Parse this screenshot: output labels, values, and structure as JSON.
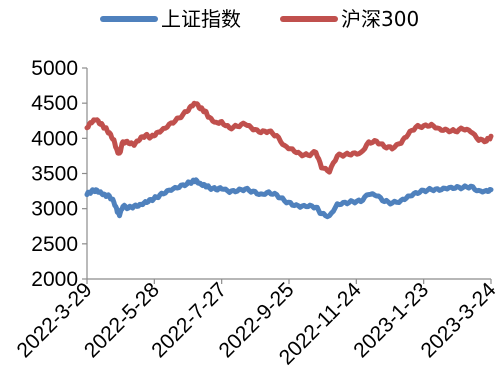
{
  "chart_data": {
    "type": "line",
    "title": "",
    "xlabel": "",
    "ylabel": "",
    "ylim": [
      2000,
      5000
    ],
    "yticks": [
      2000,
      2500,
      3000,
      3500,
      4000,
      4500,
      5000
    ],
    "xlim": [
      "2022-03-29",
      "2023-03-24"
    ],
    "xticks": [
      "2022-3-29",
      "2022-5-28",
      "2022-7-27",
      "2022-9-25",
      "2022-11-24",
      "2023-1-23",
      "2023-3-24"
    ],
    "grid": false,
    "legend_position": "top",
    "series": [
      {
        "name": "上证指数",
        "color": "#4f81bd",
        "points": [
          [
            "2022-03-29",
            3200
          ],
          [
            "2022-04-02",
            3250
          ],
          [
            "2022-04-06",
            3270
          ],
          [
            "2022-04-10",
            3240
          ],
          [
            "2022-04-14",
            3200
          ],
          [
            "2022-04-18",
            3180
          ],
          [
            "2022-04-22",
            3090
          ],
          [
            "2022-04-25",
            2950
          ],
          [
            "2022-04-27",
            2900
          ],
          [
            "2022-04-30",
            3030
          ],
          [
            "2022-05-05",
            3010
          ],
          [
            "2022-05-10",
            3040
          ],
          [
            "2022-05-15",
            3060
          ],
          [
            "2022-05-20",
            3100
          ],
          [
            "2022-05-25",
            3130
          ],
          [
            "2022-05-30",
            3160
          ],
          [
            "2022-06-05",
            3210
          ],
          [
            "2022-06-12",
            3260
          ],
          [
            "2022-06-19",
            3300
          ],
          [
            "2022-06-26",
            3350
          ],
          [
            "2022-07-01",
            3390
          ],
          [
            "2022-07-04",
            3410
          ],
          [
            "2022-07-08",
            3360
          ],
          [
            "2022-07-12",
            3340
          ],
          [
            "2022-07-16",
            3300
          ],
          [
            "2022-07-22",
            3270
          ],
          [
            "2022-07-27",
            3280
          ],
          [
            "2022-08-03",
            3230
          ],
          [
            "2022-08-10",
            3250
          ],
          [
            "2022-08-17",
            3280
          ],
          [
            "2022-08-24",
            3250
          ],
          [
            "2022-08-31",
            3210
          ],
          [
            "2022-09-07",
            3240
          ],
          [
            "2022-09-14",
            3200
          ],
          [
            "2022-09-21",
            3110
          ],
          [
            "2022-09-28",
            3050
          ],
          [
            "2022-10-05",
            3020
          ],
          [
            "2022-10-12",
            3030
          ],
          [
            "2022-10-19",
            3020
          ],
          [
            "2022-10-24",
            2930
          ],
          [
            "2022-10-31",
            2900
          ],
          [
            "2022-11-07",
            3070
          ],
          [
            "2022-11-14",
            3090
          ],
          [
            "2022-11-21",
            3100
          ],
          [
            "2022-11-28",
            3100
          ],
          [
            "2022-12-05",
            3200
          ],
          [
            "2022-12-12",
            3180
          ],
          [
            "2022-12-19",
            3100
          ],
          [
            "2022-12-26",
            3080
          ],
          [
            "2023-01-03",
            3120
          ],
          [
            "2023-01-09",
            3180
          ],
          [
            "2023-01-16",
            3230
          ],
          [
            "2023-01-23",
            3260
          ],
          [
            "2023-01-30",
            3270
          ],
          [
            "2023-02-06",
            3260
          ],
          [
            "2023-02-13",
            3280
          ],
          [
            "2023-02-20",
            3290
          ],
          [
            "2023-02-27",
            3300
          ],
          [
            "2023-03-06",
            3320
          ],
          [
            "2023-03-13",
            3260
          ],
          [
            "2023-03-20",
            3260
          ],
          [
            "2023-03-24",
            3270
          ]
        ]
      },
      {
        "name": "沪深300",
        "color": "#c0504d",
        "points": [
          [
            "2022-03-29",
            4150
          ],
          [
            "2022-04-02",
            4220
          ],
          [
            "2022-04-06",
            4260
          ],
          [
            "2022-04-10",
            4200
          ],
          [
            "2022-04-14",
            4150
          ],
          [
            "2022-04-18",
            4080
          ],
          [
            "2022-04-22",
            3980
          ],
          [
            "2022-04-25",
            3820
          ],
          [
            "2022-04-27",
            3790
          ],
          [
            "2022-04-30",
            3950
          ],
          [
            "2022-05-05",
            3930
          ],
          [
            "2022-05-10",
            3900
          ],
          [
            "2022-05-15",
            3980
          ],
          [
            "2022-05-20",
            4040
          ],
          [
            "2022-05-25",
            4020
          ],
          [
            "2022-05-30",
            4080
          ],
          [
            "2022-06-05",
            4140
          ],
          [
            "2022-06-12",
            4220
          ],
          [
            "2022-06-19",
            4290
          ],
          [
            "2022-06-26",
            4380
          ],
          [
            "2022-07-01",
            4460
          ],
          [
            "2022-07-04",
            4490
          ],
          [
            "2022-07-08",
            4420
          ],
          [
            "2022-07-12",
            4390
          ],
          [
            "2022-07-16",
            4300
          ],
          [
            "2022-07-22",
            4230
          ],
          [
            "2022-07-27",
            4240
          ],
          [
            "2022-08-03",
            4150
          ],
          [
            "2022-08-10",
            4170
          ],
          [
            "2022-08-17",
            4200
          ],
          [
            "2022-08-24",
            4120
          ],
          [
            "2022-08-31",
            4080
          ],
          [
            "2022-09-07",
            4100
          ],
          [
            "2022-09-14",
            4040
          ],
          [
            "2022-09-21",
            3900
          ],
          [
            "2022-09-28",
            3850
          ],
          [
            "2022-10-05",
            3780
          ],
          [
            "2022-10-12",
            3760
          ],
          [
            "2022-10-19",
            3800
          ],
          [
            "2022-10-24",
            3580
          ],
          [
            "2022-10-31",
            3520
          ],
          [
            "2022-11-07",
            3750
          ],
          [
            "2022-11-14",
            3770
          ],
          [
            "2022-11-21",
            3790
          ],
          [
            "2022-11-28",
            3800
          ],
          [
            "2022-12-05",
            3950
          ],
          [
            "2022-12-12",
            3960
          ],
          [
            "2022-12-19",
            3880
          ],
          [
            "2022-12-26",
            3850
          ],
          [
            "2023-01-03",
            3930
          ],
          [
            "2023-01-09",
            4050
          ],
          [
            "2023-01-16",
            4160
          ],
          [
            "2023-01-23",
            4180
          ],
          [
            "2023-01-30",
            4200
          ],
          [
            "2023-02-06",
            4140
          ],
          [
            "2023-02-13",
            4120
          ],
          [
            "2023-02-20",
            4100
          ],
          [
            "2023-02-27",
            4130
          ],
          [
            "2023-03-06",
            4090
          ],
          [
            "2023-03-13",
            3970
          ],
          [
            "2023-03-20",
            3960
          ],
          [
            "2023-03-24",
            4030
          ]
        ]
      }
    ]
  }
}
